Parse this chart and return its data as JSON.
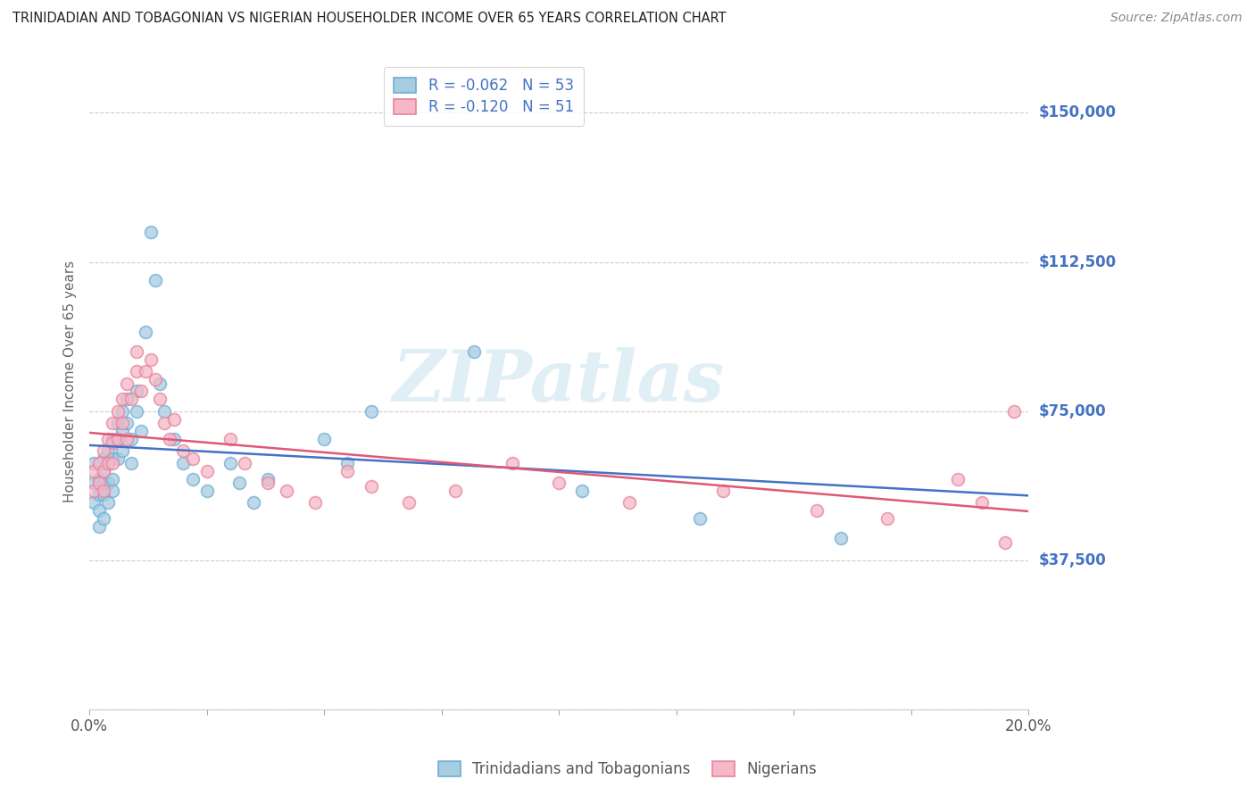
{
  "title": "TRINIDADIAN AND TOBAGONIAN VS NIGERIAN HOUSEHOLDER INCOME OVER 65 YEARS CORRELATION CHART",
  "source": "Source: ZipAtlas.com",
  "ylabel": "Householder Income Over 65 years",
  "legend_bottom": [
    "Trinidadians and Tobagonians",
    "Nigerians"
  ],
  "r_tnt": -0.062,
  "n_tnt": 53,
  "r_nig": -0.12,
  "n_nig": 51,
  "yticks": [
    0,
    37500,
    75000,
    112500,
    150000
  ],
  "ytick_labels": [
    "",
    "$37,500",
    "$75,000",
    "$112,500",
    "$150,000"
  ],
  "xticks": [
    0.0,
    0.025,
    0.05,
    0.075,
    0.1,
    0.125,
    0.15,
    0.175,
    0.2
  ],
  "xlim": [
    0,
    0.2
  ],
  "ylim": [
    0,
    165000
  ],
  "blue_scatter_color": "#a8cce0",
  "blue_edge_color": "#6baed6",
  "pink_scatter_color": "#f4b8c8",
  "pink_edge_color": "#e8829a",
  "blue_line_color": "#4472c4",
  "pink_line_color": "#e05878",
  "title_color": "#222222",
  "source_color": "#888888",
  "right_label_color": "#4472c4",
  "watermark_color": "#c8e0f0",
  "watermark": "ZIPatlas",
  "tnt_x": [
    0.001,
    0.001,
    0.001,
    0.002,
    0.002,
    0.002,
    0.002,
    0.003,
    0.003,
    0.003,
    0.003,
    0.003,
    0.004,
    0.004,
    0.004,
    0.004,
    0.005,
    0.005,
    0.005,
    0.005,
    0.006,
    0.006,
    0.006,
    0.007,
    0.007,
    0.007,
    0.008,
    0.008,
    0.009,
    0.009,
    0.01,
    0.01,
    0.011,
    0.012,
    0.013,
    0.014,
    0.015,
    0.016,
    0.018,
    0.02,
    0.022,
    0.025,
    0.03,
    0.032,
    0.035,
    0.038,
    0.05,
    0.055,
    0.06,
    0.082,
    0.105,
    0.13,
    0.16
  ],
  "tnt_y": [
    62000,
    57000,
    52000,
    58000,
    54000,
    50000,
    46000,
    63000,
    60000,
    57000,
    54000,
    48000,
    65000,
    62000,
    57000,
    52000,
    68000,
    63000,
    58000,
    55000,
    72000,
    68000,
    63000,
    75000,
    70000,
    65000,
    78000,
    72000,
    68000,
    62000,
    80000,
    75000,
    70000,
    95000,
    120000,
    108000,
    82000,
    75000,
    68000,
    62000,
    58000,
    55000,
    62000,
    57000,
    52000,
    58000,
    68000,
    62000,
    75000,
    90000,
    55000,
    48000,
    43000
  ],
  "nig_x": [
    0.001,
    0.001,
    0.002,
    0.002,
    0.003,
    0.003,
    0.003,
    0.004,
    0.004,
    0.005,
    0.005,
    0.005,
    0.006,
    0.006,
    0.007,
    0.007,
    0.008,
    0.008,
    0.009,
    0.01,
    0.01,
    0.011,
    0.012,
    0.013,
    0.014,
    0.015,
    0.016,
    0.017,
    0.018,
    0.02,
    0.022,
    0.025,
    0.03,
    0.033,
    0.038,
    0.042,
    0.048,
    0.055,
    0.06,
    0.068,
    0.078,
    0.09,
    0.1,
    0.115,
    0.135,
    0.155,
    0.17,
    0.185,
    0.19,
    0.195,
    0.197
  ],
  "nig_y": [
    60000,
    55000,
    62000,
    57000,
    65000,
    60000,
    55000,
    68000,
    62000,
    72000,
    67000,
    62000,
    75000,
    68000,
    78000,
    72000,
    68000,
    82000,
    78000,
    90000,
    85000,
    80000,
    85000,
    88000,
    83000,
    78000,
    72000,
    68000,
    73000,
    65000,
    63000,
    60000,
    68000,
    62000,
    57000,
    55000,
    52000,
    60000,
    56000,
    52000,
    55000,
    62000,
    57000,
    52000,
    55000,
    50000,
    48000,
    58000,
    52000,
    42000,
    75000
  ]
}
